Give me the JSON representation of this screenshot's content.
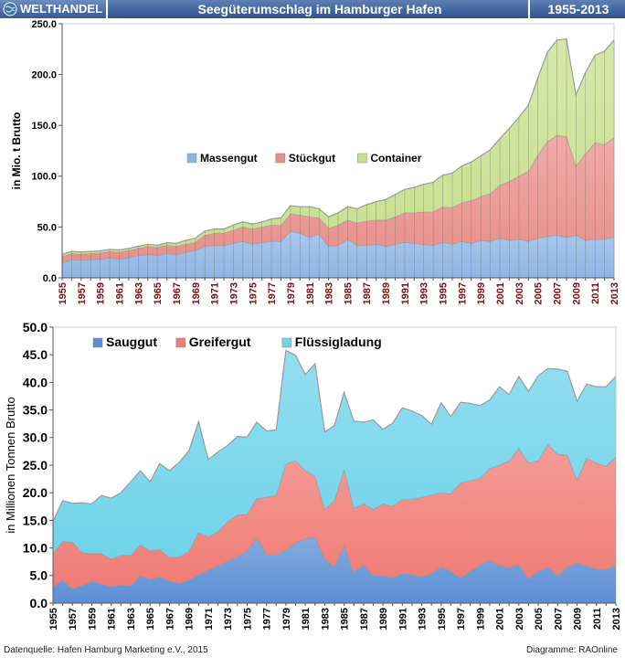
{
  "header": {
    "brand": "WELTHANDEL",
    "title": "Seegüterumschlag im Hamburger Hafen",
    "period": "1955-2013"
  },
  "footer": {
    "source": "Datenquelle: Hafen Hamburg Marketing e.V., 2015",
    "credit": "Diagramme: RAOnline"
  },
  "chart_data": [
    {
      "type": "area",
      "stacked": true,
      "ylabel": "in Mio. t Brutto",
      "xlabel": "",
      "ylim": [
        0,
        250
      ],
      "yticks": [
        "0.0",
        "50.0",
        "100.0",
        "150.0",
        "200.0",
        "250.0"
      ],
      "x": [
        1955,
        1956,
        1957,
        1958,
        1959,
        1960,
        1961,
        1962,
        1963,
        1964,
        1965,
        1966,
        1967,
        1968,
        1969,
        1970,
        1971,
        1972,
        1973,
        1974,
        1975,
        1976,
        1977,
        1978,
        1979,
        1980,
        1981,
        1982,
        1983,
        1984,
        1985,
        1986,
        1987,
        1988,
        1989,
        1990,
        1991,
        1992,
        1993,
        1994,
        1995,
        1996,
        1997,
        1998,
        1999,
        2000,
        2001,
        2002,
        2003,
        2004,
        2005,
        2006,
        2007,
        2008,
        2009,
        2010,
        2011,
        2012,
        2013
      ],
      "xticks": [
        "1955",
        "1957",
        "1959",
        "1961",
        "1963",
        "1965",
        "1967",
        "1969",
        "1971",
        "1973",
        "1975",
        "1977",
        "1979",
        "1981",
        "1983",
        "1985",
        "1987",
        "1989",
        "1991",
        "1993",
        "1995",
        "1997",
        "1999",
        "2001",
        "2003",
        "2005",
        "2007",
        "2009",
        "2011",
        "2013"
      ],
      "legend_position": "top-center",
      "grid": false,
      "series": [
        {
          "name": "Massengut",
          "color": "#8db5e4",
          "values": [
            15,
            18,
            17.5,
            18,
            18.5,
            19.5,
            18.5,
            20,
            22,
            23,
            22,
            24,
            23,
            25,
            27,
            31,
            32,
            32,
            34,
            36,
            33,
            35,
            36,
            36,
            46,
            44,
            40,
            43,
            31,
            32,
            38,
            32,
            32,
            33,
            31,
            33,
            35,
            34,
            33,
            32,
            35,
            33,
            36,
            34,
            37,
            36,
            39,
            37,
            38,
            36,
            39,
            41,
            42,
            40,
            42,
            37,
            38,
            38,
            40
          ]
        },
        {
          "name": "Stückgut",
          "color": "#e98f8b",
          "values": [
            6,
            6,
            6,
            6,
            6,
            6.5,
            7,
            7,
            7,
            8,
            8,
            8,
            8,
            8,
            8,
            11,
            12,
            12,
            13,
            14,
            15,
            15,
            16,
            16,
            17,
            18,
            20,
            16,
            18,
            20,
            19,
            22,
            24,
            24,
            26,
            27,
            29,
            30,
            32,
            33,
            35,
            36,
            38,
            42,
            43,
            47,
            52,
            58,
            62,
            69,
            82,
            93,
            98,
            99,
            68,
            85,
            95,
            93,
            98
          ]
        },
        {
          "name": "Container",
          "color": "#c8df8e",
          "values": [
            2,
            2,
            2,
            2,
            2,
            2,
            2,
            2,
            2,
            2,
            2,
            2.5,
            3,
            4,
            4,
            4,
            4,
            4,
            5,
            5,
            5,
            5,
            6,
            7,
            8,
            8,
            10,
            9,
            11,
            12,
            13,
            14,
            16,
            18,
            20,
            22,
            23,
            25,
            27,
            29,
            31,
            34,
            36,
            38,
            40,
            43,
            46,
            52,
            58,
            65,
            76,
            88,
            94,
            96,
            70,
            80,
            86,
            92,
            96
          ]
        }
      ]
    },
    {
      "type": "area",
      "stacked": true,
      "ylabel": "in Millionen Tonnen Brutto",
      "xlabel": "",
      "ylim": [
        0,
        50
      ],
      "yticks": [
        "0.0",
        "5.0",
        "10.0",
        "15.0",
        "20.0",
        "25.0",
        "30.0",
        "35.0",
        "40.0",
        "45.0",
        "50.0"
      ],
      "x": [
        1955,
        1956,
        1957,
        1958,
        1959,
        1960,
        1961,
        1962,
        1963,
        1964,
        1965,
        1966,
        1967,
        1968,
        1969,
        1970,
        1971,
        1972,
        1973,
        1974,
        1975,
        1976,
        1977,
        1978,
        1979,
        1980,
        1981,
        1982,
        1983,
        1984,
        1985,
        1986,
        1987,
        1988,
        1989,
        1990,
        1991,
        1992,
        1993,
        1994,
        1995,
        1996,
        1997,
        1998,
        1999,
        2000,
        2001,
        2002,
        2003,
        2004,
        2005,
        2006,
        2007,
        2008,
        2009,
        2010,
        2011,
        2012,
        2013
      ],
      "xticks": [
        "1955",
        "1957",
        "1959",
        "1961",
        "1963",
        "1965",
        "1967",
        "1969",
        "1971",
        "1973",
        "1975",
        "1977",
        "1979",
        "1981",
        "1983",
        "1985",
        "1987",
        "1989",
        "1991",
        "1993",
        "1995",
        "1997",
        "1999",
        "2001",
        "2003",
        "2005",
        "2007",
        "2009",
        "2011",
        "2013"
      ],
      "legend_position": "top-left",
      "grid": false,
      "series": [
        {
          "name": "Sauggut",
          "color": "#5b8fd4",
          "values": [
            3,
            4.2,
            2.6,
            3.2,
            4,
            3.5,
            3,
            3.3,
            3.2,
            5,
            4.3,
            4.8,
            4,
            3.6,
            4.2,
            5.2,
            6,
            6.8,
            7.6,
            8.4,
            9.5,
            11.8,
            8.8,
            8.8,
            9.6,
            11,
            11.6,
            12,
            8,
            6.6,
            10.4,
            5.6,
            7,
            5,
            5,
            4.6,
            5.4,
            5.2,
            4.8,
            5.4,
            6.6,
            5.8,
            4.6,
            5.8,
            7,
            7.8,
            6.8,
            6.4,
            7,
            4.4,
            5.8,
            6.5,
            5,
            6.6,
            7.3,
            6.8,
            6.2,
            6.2,
            6.8
          ]
        },
        {
          "name": "Greifergut",
          "color": "#f07b74",
          "values": [
            6,
            7,
            8.5,
            6,
            5,
            5.5,
            5,
            5.4,
            5.5,
            5.6,
            5.2,
            4.9,
            4.3,
            4.8,
            5.2,
            7.6,
            6,
            6.2,
            7.2,
            7.6,
            6.6,
            7.2,
            10.4,
            10.8,
            15.6,
            14.8,
            12.4,
            11,
            9,
            12,
            13.8,
            11.6,
            11,
            12,
            13,
            13,
            13.4,
            13.6,
            14.4,
            14.2,
            13.4,
            14,
            17.2,
            16.4,
            15.6,
            16.6,
            18.2,
            19.4,
            21,
            21,
            20,
            22.2,
            22,
            20.2,
            15,
            19.5,
            19.2,
            18.6,
            19.7
          ]
        },
        {
          "name": "Flüssigladung",
          "color": "#6fd3ea",
          "values": [
            5.8,
            7.4,
            7,
            9,
            9,
            10.5,
            11,
            11.3,
            13.3,
            13.4,
            12.5,
            15.6,
            15.7,
            17.1,
            18.2,
            20.1,
            14,
            14.4,
            13.8,
            14.2,
            14,
            13.8,
            12,
            11.8,
            20.6,
            19.1,
            17.4,
            20.4,
            14,
            13.6,
            14,
            15.8,
            14.8,
            16.2,
            13.5,
            15,
            16.6,
            16,
            14.8,
            12.8,
            16.3,
            14,
            14.6,
            14,
            13.2,
            12.4,
            14.2,
            12,
            13.1,
            13,
            15.4,
            13.8,
            15.4,
            15.2,
            14.3,
            13.4,
            13.8,
            14.4,
            14.6
          ]
        }
      ]
    }
  ]
}
